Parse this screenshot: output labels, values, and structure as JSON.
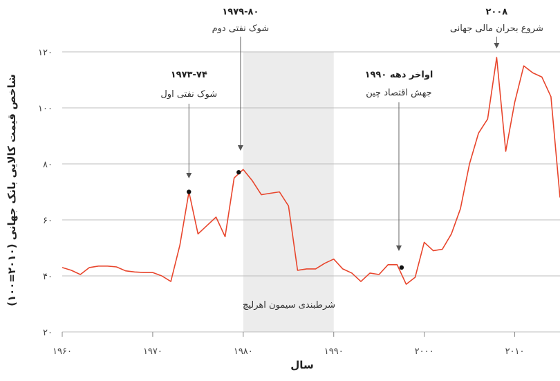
{
  "chart_data": {
    "type": "line",
    "title": "",
    "xlabel": "سال",
    "ylabel": "شاخص قیمت کالایی بانک جهانی (۲۰۱۰=۱۰۰)",
    "xlim": [
      1960,
      2015
    ],
    "ylim": [
      20,
      120
    ],
    "grid": true,
    "line_color": "#e8452c",
    "marker_color": "#111111",
    "shade_color": "#ececec",
    "x_ticks": [
      1960,
      1970,
      1980,
      1990,
      2000,
      2010
    ],
    "x_tick_labels": [
      "۱۹۶۰",
      "۱۹۷۰",
      "۱۹۸۰",
      "۱۹۹۰",
      "۲۰۰۰",
      "۲۰۱۰"
    ],
    "y_ticks": [
      20,
      40,
      60,
      80,
      100,
      120
    ],
    "y_tick_labels": [
      "۲۰",
      "۴۰",
      "۶۰",
      "۸۰",
      "۱۰۰",
      "۱۲۰"
    ],
    "series": [
      {
        "x": [
          1960,
          1961,
          1962,
          1963,
          1964,
          1965,
          1966,
          1967,
          1968,
          1969,
          1970,
          1971,
          1972,
          1973,
          1974,
          1975,
          1976,
          1977,
          1978,
          1979,
          1980,
          1981,
          1982,
          1983,
          1984,
          1985,
          1986,
          1987,
          1988,
          1989,
          1990,
          1991,
          1992,
          1993,
          1994,
          1995,
          1996,
          1997,
          1998,
          1999,
          2000,
          2001,
          2002,
          2003,
          2004,
          2005,
          2006,
          2007,
          2008,
          2009,
          2010,
          2011,
          2012,
          2013,
          2014,
          2015
        ],
        "y": [
          43,
          42,
          40.5,
          43,
          43.5,
          43.5,
          43.2,
          41.8,
          41.4,
          41.2,
          41.2,
          40,
          38,
          51,
          70,
          55,
          58,
          61,
          54,
          75,
          78,
          74,
          69,
          69.5,
          70,
          65,
          42,
          42.5,
          42.5,
          44.5,
          46,
          42.5,
          41,
          38,
          41,
          40.5,
          44,
          44,
          37,
          39.5,
          52,
          49,
          49.5,
          55,
          64,
          80,
          91,
          96,
          118,
          84.5,
          102,
          115,
          112.5,
          111,
          104,
          68
        ]
      }
    ],
    "highlighted_points": [
      {
        "x": 1974,
        "y": 70
      },
      {
        "x": 1979.5,
        "y": 77
      },
      {
        "x": 1997.5,
        "y": 43
      }
    ],
    "shaded_region": {
      "x": [
        1980,
        1990
      ],
      "label": "شرطبندی سیمون اهرلیچ"
    },
    "annotations": [
      {
        "title": "۱۹۷۳-۷۴",
        "text": "شوک نفتی اول",
        "x": 1974
      },
      {
        "title": "۱۹۷۹-۸۰",
        "text": "شوک نفتی دوم",
        "x": 1979.7
      },
      {
        "title": "اواخر دهه ۱۹۹۰",
        "text": "جهش اقتصاد چین",
        "x": 1997.2
      },
      {
        "title": "۲۰۰۸",
        "text": "شروع بحران مالی جهانی",
        "x": 2008
      }
    ]
  }
}
